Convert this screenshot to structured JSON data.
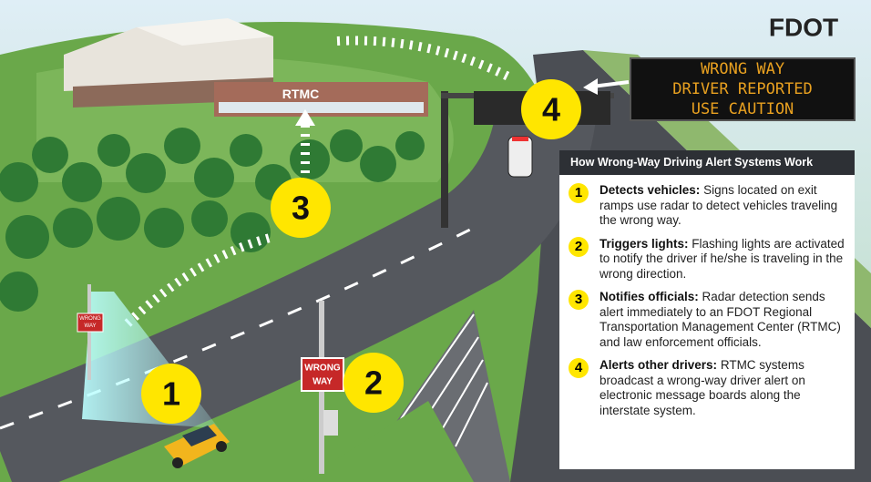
{
  "logo": "FDOT",
  "building_label": "RTMC",
  "small_sign": [
    "WRONG",
    "WAY"
  ],
  "roadside_sign": [
    "WRONG",
    "WAY"
  ],
  "message_board": [
    "WRONG WAY",
    "DRIVER REPORTED",
    "USE CAUTION"
  ],
  "markers": [
    "1",
    "2",
    "3",
    "4"
  ],
  "panel": {
    "title": "How Wrong-Way Driving Alert Systems Work",
    "steps": [
      {
        "number": "1",
        "heading": "Detects vehicles:",
        "text": "Signs located on exit ramps use radar to detect vehicles traveling the wrong way."
      },
      {
        "number": "2",
        "heading": "Triggers lights:",
        "text": "Flashing lights are activated to notify the driver if he/she is traveling in the wrong direction."
      },
      {
        "number": "3",
        "heading": "Notifies officials:",
        "text": "Radar detection sends alert immediately to an FDOT Regional Transportation Management Center (RTMC) and law enforcement officials."
      },
      {
        "number": "4",
        "heading": "Alerts other drivers:",
        "text": "RTMC systems broadcast a wrong-way driver alert on electronic message boards along the interstate system."
      }
    ]
  }
}
